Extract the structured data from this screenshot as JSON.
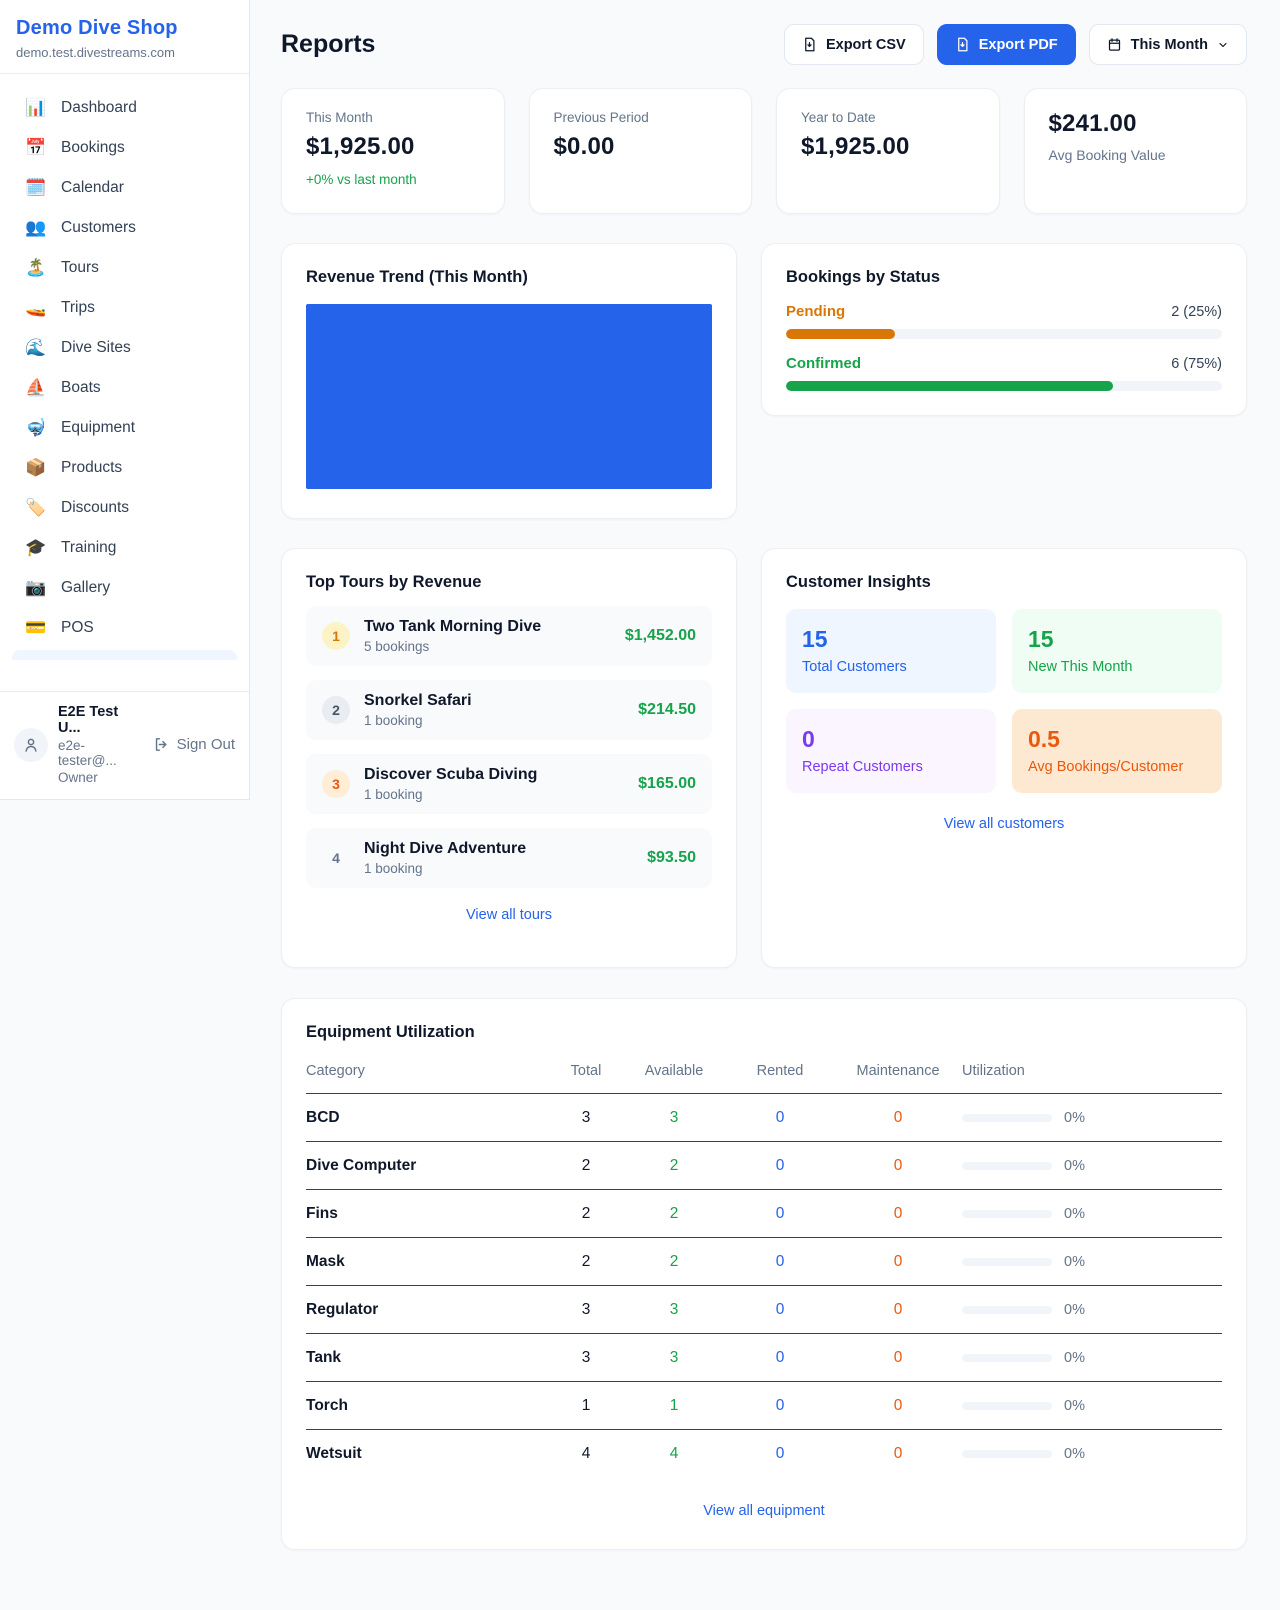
{
  "colors": {
    "accent": "#2563eb",
    "revenue_bar": "#2563eb",
    "pending": "#d97706",
    "confirmed": "#16a34a",
    "positive_green": "#16a34a",
    "rented_blue": "#2563eb",
    "maintenance_orange": "#ea580c",
    "purple": "#7c3aed"
  },
  "sidebar": {
    "shop_name": "Demo Dive Shop",
    "domain": "demo.test.divestreams.com",
    "items": [
      {
        "icon": "📊",
        "label": "Dashboard"
      },
      {
        "icon": "📅",
        "label": "Bookings"
      },
      {
        "icon": "🗓️",
        "label": "Calendar"
      },
      {
        "icon": "👥",
        "label": "Customers"
      },
      {
        "icon": "🏝️",
        "label": "Tours"
      },
      {
        "icon": "🚤",
        "label": "Trips"
      },
      {
        "icon": "🌊",
        "label": "Dive Sites"
      },
      {
        "icon": "⛵",
        "label": "Boats"
      },
      {
        "icon": "🤿",
        "label": "Equipment"
      },
      {
        "icon": "📦",
        "label": "Products"
      },
      {
        "icon": "🏷️",
        "label": "Discounts"
      },
      {
        "icon": "🎓",
        "label": "Training"
      },
      {
        "icon": "📷",
        "label": "Gallery"
      },
      {
        "icon": "💳",
        "label": "POS"
      }
    ],
    "user": {
      "name": "E2E Test U...",
      "email": "e2e-tester@...",
      "role": "Owner",
      "sign_out": "Sign Out"
    }
  },
  "header": {
    "title": "Reports",
    "export_csv": "Export CSV",
    "export_pdf": "Export PDF",
    "period": "This Month"
  },
  "stats": [
    {
      "label": "This Month",
      "value": "$1,925.00",
      "sub": "+0% vs last month"
    },
    {
      "label": "Previous Period",
      "value": "$0.00"
    },
    {
      "label": "Year to Date",
      "value": "$1,925.00"
    },
    {
      "label": "Avg Booking Value",
      "value": "$241.00"
    }
  ],
  "revenue_trend": {
    "title": "Revenue Trend (This Month)"
  },
  "chart_data": {
    "type": "bar",
    "title": "Revenue Trend (This Month)",
    "note": "single solid full-width blue bar filling the plot area; no axes, ticks or labels visible",
    "bar_color": "#2563eb"
  },
  "bookings_by_status": {
    "title": "Bookings by Status",
    "rows": [
      {
        "label": "Pending",
        "value": "2 (25%)",
        "pct": 25
      },
      {
        "label": "Confirmed",
        "value": "6 (75%)",
        "pct": 75
      }
    ]
  },
  "top_tours": {
    "title": "Top Tours by Revenue",
    "view_all": "View all tours",
    "rows": [
      {
        "rank": "1",
        "name": "Two Tank Morning Dive",
        "bookings": "5 bookings",
        "revenue": "$1,452.00"
      },
      {
        "rank": "2",
        "name": "Snorkel Safari",
        "bookings": "1 booking",
        "revenue": "$214.50"
      },
      {
        "rank": "3",
        "name": "Discover Scuba Diving",
        "bookings": "1 booking",
        "revenue": "$165.00"
      },
      {
        "rank": "4",
        "name": "Night Dive Adventure",
        "bookings": "1 booking",
        "revenue": "$93.50"
      }
    ]
  },
  "customer_insights": {
    "title": "Customer Insights",
    "view_all": "View all customers",
    "tiles": [
      {
        "value": "15",
        "label": "Total Customers"
      },
      {
        "value": "15",
        "label": "New This Month"
      },
      {
        "value": "0",
        "label": "Repeat Customers"
      },
      {
        "value": "0.5",
        "label": "Avg Bookings/Customer"
      }
    ]
  },
  "equipment": {
    "title": "Equipment Utilization",
    "view_all": "View all equipment",
    "columns": [
      "Category",
      "Total",
      "Available",
      "Rented",
      "Maintenance",
      "Utilization"
    ],
    "rows": [
      {
        "category": "BCD",
        "total": "3",
        "available": "3",
        "rented": "0",
        "maintenance": "0",
        "utilization": "0%",
        "utilization_pct": 0
      },
      {
        "category": "Dive Computer",
        "total": "2",
        "available": "2",
        "rented": "0",
        "maintenance": "0",
        "utilization": "0%",
        "utilization_pct": 0
      },
      {
        "category": "Fins",
        "total": "2",
        "available": "2",
        "rented": "0",
        "maintenance": "0",
        "utilization": "0%",
        "utilization_pct": 0
      },
      {
        "category": "Mask",
        "total": "2",
        "available": "2",
        "rented": "0",
        "maintenance": "0",
        "utilization": "0%",
        "utilization_pct": 0
      },
      {
        "category": "Regulator",
        "total": "3",
        "available": "3",
        "rented": "0",
        "maintenance": "0",
        "utilization": "0%",
        "utilization_pct": 0
      },
      {
        "category": "Tank",
        "total": "3",
        "available": "3",
        "rented": "0",
        "maintenance": "0",
        "utilization": "0%",
        "utilization_pct": 0
      },
      {
        "category": "Torch",
        "total": "1",
        "available": "1",
        "rented": "0",
        "maintenance": "0",
        "utilization": "0%",
        "utilization_pct": 0
      },
      {
        "category": "Wetsuit",
        "total": "4",
        "available": "4",
        "rented": "0",
        "maintenance": "0",
        "utilization": "0%",
        "utilization_pct": 0
      }
    ]
  }
}
